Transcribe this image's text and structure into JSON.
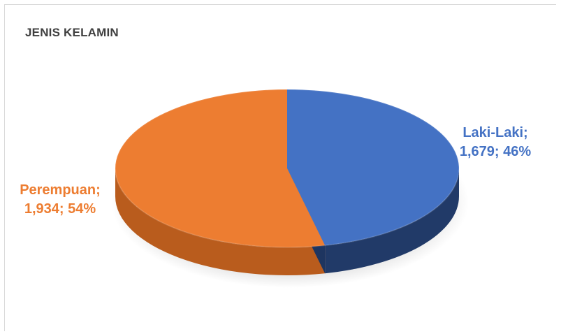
{
  "chart_data": {
    "type": "pie",
    "title": "JENIS KELAMIN",
    "style": "3d",
    "slices": [
      {
        "label": "Laki-Laki",
        "value": 1679,
        "percent": 46,
        "value_text": "1,679; 46%",
        "color": "#4472c4",
        "side_color": "#213a68"
      },
      {
        "label": "Perempuan",
        "value": 1934,
        "percent": 54,
        "value_text": "1,934; 54%",
        "color": "#ed7d31",
        "side_color": "#b95c1d"
      }
    ]
  }
}
